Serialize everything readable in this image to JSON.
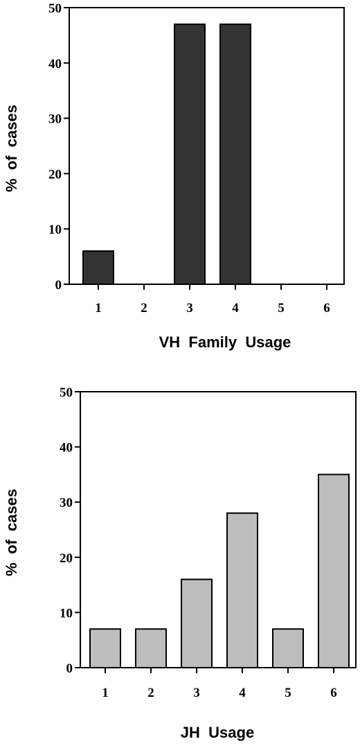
{
  "chart_data": [
    {
      "type": "bar",
      "categories": [
        "1",
        "2",
        "3",
        "4",
        "5",
        "6"
      ],
      "values": [
        6,
        0,
        47,
        47,
        0,
        0
      ],
      "xlabel": "VH  Family  Usage",
      "ylabel": "%  of  cases",
      "ylim": [
        0,
        50
      ],
      "yticks": [
        "0",
        "10",
        "20",
        "30",
        "40",
        "50"
      ],
      "grid": false,
      "bar_color": "#333333"
    },
    {
      "type": "bar",
      "categories": [
        "1",
        "2",
        "3",
        "4",
        "5",
        "6"
      ],
      "values": [
        7,
        7,
        16,
        28,
        7,
        35
      ],
      "xlabel": "JH  Usage",
      "ylabel": "%  of  cases",
      "ylim": [
        0,
        50
      ],
      "yticks": [
        "0",
        "10",
        "20",
        "30",
        "40",
        "50"
      ],
      "grid": false,
      "bar_color": "#bdbdbd"
    }
  ]
}
